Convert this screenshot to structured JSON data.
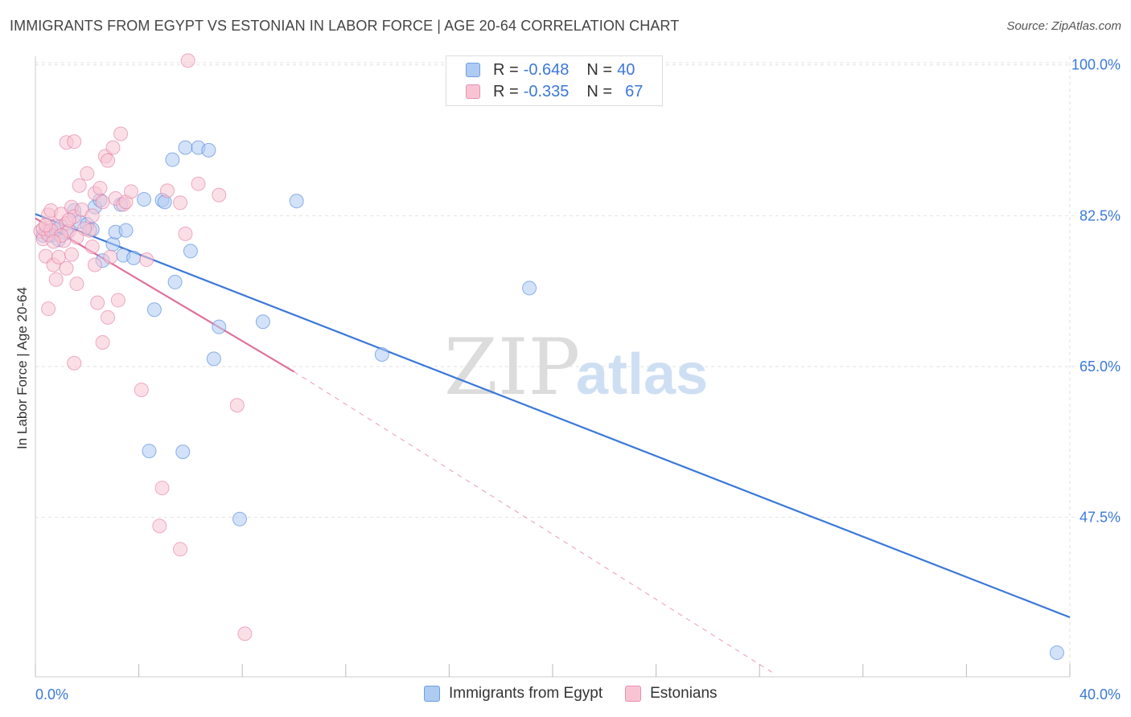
{
  "title": "IMMIGRANTS FROM EGYPT VS ESTONIAN IN LABOR FORCE | AGE 20-64 CORRELATION CHART",
  "source": "Source: ZipAtlas.com",
  "watermark": {
    "zip": "ZIP",
    "atlas": "atlas"
  },
  "legend": {
    "r_label": "R =",
    "n_label": "N =",
    "rows": [
      {
        "name": "Immigrants from Egypt",
        "r": "-0.648",
        "n": "40",
        "fill": "#aecbf2",
        "stroke": "#6f9fe0"
      },
      {
        "name": "Estonians",
        "r": "-0.335",
        "n": "67",
        "fill": "#f8c4d4",
        "stroke": "#e88fae"
      }
    ]
  },
  "chart_data": {
    "type": "scatter",
    "title": "IMMIGRANTS FROM EGYPT VS ESTONIAN IN LABOR FORCE | AGE 20-64 CORRELATION CHART",
    "xlabel": "",
    "ylabel": "In Labor Force | Age 20-64",
    "xlim": [
      0,
      40
    ],
    "ylim": [
      29,
      101
    ],
    "x_tick_labels": [
      "0.0%",
      "40.0%"
    ],
    "y_ticks": [
      47.5,
      65.0,
      82.5,
      100.0
    ],
    "y_tick_labels": [
      "47.5%",
      "65.0%",
      "82.5%",
      "100.0%"
    ],
    "series": [
      {
        "name": "Immigrants from Egypt",
        "color": "#3b78d8",
        "fill": "#aecbf2",
        "points": [
          [
            0.4,
            80.6
          ],
          [
            0.6,
            80.2
          ],
          [
            0.8,
            80.9
          ],
          [
            1.0,
            81.3
          ],
          [
            1.2,
            80.5
          ],
          [
            1.5,
            83.1
          ],
          [
            1.7,
            81.8
          ],
          [
            2.0,
            81.5
          ],
          [
            2.2,
            80.9
          ],
          [
            2.3,
            83.5
          ],
          [
            2.5,
            84.3
          ],
          [
            2.6,
            77.3
          ],
          [
            3.0,
            79.2
          ],
          [
            3.1,
            80.6
          ],
          [
            3.3,
            83.8
          ],
          [
            3.4,
            77.9
          ],
          [
            3.5,
            80.8
          ],
          [
            3.8,
            77.6
          ],
          [
            4.2,
            84.4
          ],
          [
            4.6,
            71.6
          ],
          [
            4.4,
            55.2
          ],
          [
            4.9,
            84.3
          ],
          [
            5.0,
            84.1
          ],
          [
            5.3,
            89.0
          ],
          [
            5.4,
            74.8
          ],
          [
            5.7,
            55.1
          ],
          [
            5.8,
            90.4
          ],
          [
            6.0,
            78.4
          ],
          [
            6.3,
            90.4
          ],
          [
            6.7,
            90.1
          ],
          [
            6.9,
            65.9
          ],
          [
            7.1,
            69.6
          ],
          [
            7.9,
            47.3
          ],
          [
            8.8,
            70.2
          ],
          [
            10.1,
            84.2
          ],
          [
            13.4,
            66.4
          ],
          [
            19.1,
            74.1
          ],
          [
            39.5,
            31.8
          ],
          [
            0.3,
            80.2
          ],
          [
            0.9,
            79.7
          ]
        ]
      },
      {
        "name": "Estonians",
        "color": "#e0709a",
        "fill": "#f8c4d4",
        "points": [
          [
            0.2,
            80.7
          ],
          [
            0.3,
            79.8
          ],
          [
            0.4,
            77.8
          ],
          [
            0.5,
            80.3
          ],
          [
            0.5,
            82.6
          ],
          [
            0.6,
            83.1
          ],
          [
            0.5,
            71.7
          ],
          [
            0.7,
            76.8
          ],
          [
            0.8,
            75.1
          ],
          [
            0.8,
            81.3
          ],
          [
            0.9,
            77.7
          ],
          [
            1.0,
            82.7
          ],
          [
            1.1,
            79.6
          ],
          [
            1.2,
            81.6
          ],
          [
            1.2,
            76.4
          ],
          [
            1.3,
            80.7
          ],
          [
            1.4,
            83.5
          ],
          [
            1.5,
            82.4
          ],
          [
            1.2,
            91.0
          ],
          [
            1.4,
            78.0
          ],
          [
            1.6,
            74.6
          ],
          [
            1.5,
            65.4
          ],
          [
            1.5,
            91.1
          ],
          [
            1.7,
            86.0
          ],
          [
            1.8,
            83.2
          ],
          [
            2.0,
            87.4
          ],
          [
            2.1,
            80.8
          ],
          [
            2.2,
            82.5
          ],
          [
            2.3,
            85.1
          ],
          [
            2.3,
            76.8
          ],
          [
            2.4,
            72.4
          ],
          [
            2.5,
            85.7
          ],
          [
            2.6,
            84.1
          ],
          [
            2.7,
            89.4
          ],
          [
            2.8,
            88.9
          ],
          [
            2.6,
            67.8
          ],
          [
            2.8,
            70.7
          ],
          [
            2.9,
            77.7
          ],
          [
            3.0,
            90.4
          ],
          [
            3.1,
            84.5
          ],
          [
            3.2,
            72.7
          ],
          [
            3.3,
            92.0
          ],
          [
            3.4,
            83.8
          ],
          [
            3.5,
            84.1
          ],
          [
            3.7,
            85.3
          ],
          [
            4.1,
            62.3
          ],
          [
            4.3,
            77.4
          ],
          [
            4.9,
            50.9
          ],
          [
            4.8,
            46.5
          ],
          [
            5.1,
            85.4
          ],
          [
            5.6,
            84.0
          ],
          [
            5.6,
            43.8
          ],
          [
            5.8,
            80.4
          ],
          [
            5.9,
            100.5
          ],
          [
            6.3,
            86.2
          ],
          [
            7.1,
            84.9
          ],
          [
            7.8,
            60.5
          ],
          [
            8.1,
            34.0
          ],
          [
            0.3,
            81.0
          ],
          [
            0.6,
            80.8
          ],
          [
            1.0,
            80.2
          ],
          [
            0.7,
            79.5
          ],
          [
            1.9,
            81.0
          ],
          [
            2.2,
            78.9
          ],
          [
            0.4,
            81.4
          ],
          [
            1.6,
            80.0
          ],
          [
            1.3,
            82.0
          ]
        ]
      }
    ],
    "trendlines": [
      {
        "series": "Immigrants from Egypt",
        "x": [
          0.0,
          40.0
        ],
        "y": [
          82.7,
          35.9
        ],
        "dashed": false
      },
      {
        "series": "Estonians",
        "x": [
          0.0,
          10.0
        ],
        "y": [
          82.2,
          64.4
        ],
        "dashed": false
      },
      {
        "series": "Estonians",
        "x": [
          10.0,
          28.5
        ],
        "y": [
          64.4,
          29.5
        ],
        "dashed": true
      }
    ],
    "grid": true
  }
}
